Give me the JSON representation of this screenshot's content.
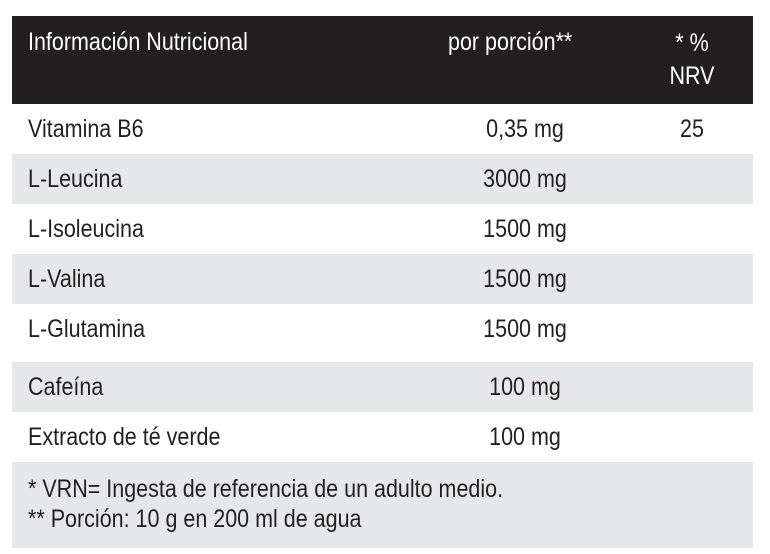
{
  "header": {
    "col1": "Información Nutricional",
    "col2": "por porción**",
    "col3_line1": "* %",
    "col3_line2": "NRV"
  },
  "rows": [
    {
      "name": "Vitamina B6",
      "amount": "0,35 mg",
      "nrv": "25"
    },
    {
      "name": "L-Leucina",
      "amount": "3000 mg",
      "nrv": ""
    },
    {
      "name": "L-Isoleucina",
      "amount": "1500 mg",
      "nrv": ""
    },
    {
      "name": "L-Valina",
      "amount": "1500 mg",
      "nrv": ""
    },
    {
      "name": "L-Glutamina",
      "amount": "1500 mg",
      "nrv": ""
    },
    {
      "name": "Cafeína",
      "amount": "100 mg",
      "nrv": ""
    },
    {
      "name": "Extracto de té verde",
      "amount": "100 mg",
      "nrv": ""
    }
  ],
  "footer": {
    "note1": "* VRN= Ingesta de referencia de un adulto medio.",
    "note2": "** Porción: 10 g en 200 ml de agua"
  },
  "colors": {
    "header_bg": "#231f20",
    "header_text": "#ffffff",
    "row_alt_bg": "#e6e7e8",
    "text": "#231f20"
  }
}
